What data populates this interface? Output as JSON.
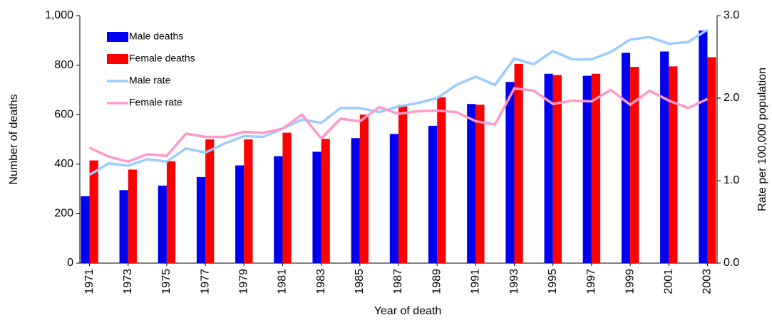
{
  "chart_data": {
    "type": "bar_line",
    "xlabel": "Year of death",
    "ylabel": "Number of deaths",
    "y2label": "Rate per 100,000 population",
    "categories": [
      "1971",
      null,
      "1973",
      null,
      "1975",
      null,
      "1977",
      null,
      "1979",
      null,
      "1981",
      null,
      "1983",
      null,
      "1985",
      null,
      "1987",
      null,
      "1989",
      null,
      "1991",
      null,
      "1993",
      null,
      "1995",
      null,
      "1997",
      null,
      "1999",
      null,
      "2001",
      null,
      "2003"
    ],
    "ylim": [
      0,
      1000
    ],
    "yticks": [
      0,
      200,
      400,
      600,
      800,
      {
        "value": 1000,
        "label": "1,000"
      }
    ],
    "y2lim": [
      0,
      3
    ],
    "y2ticks": [
      {
        "value": 0,
        "label": "0.0"
      },
      {
        "value": 1,
        "label": "1.0"
      },
      {
        "value": 2,
        "label": "2.0"
      },
      {
        "value": 3,
        "label": "3.0"
      }
    ],
    "legend": "upper left",
    "series": [
      {
        "name": "Male deaths",
        "kind": "bar",
        "color": "#0000ee",
        "values": [
          270,
          null,
          295,
          null,
          313,
          null,
          348,
          null,
          395,
          null,
          432,
          null,
          450,
          null,
          505,
          null,
          522,
          null,
          555,
          null,
          643,
          null,
          732,
          null,
          765,
          null,
          757,
          null,
          850,
          null,
          855,
          null,
          940
        ]
      },
      {
        "name": "Female deaths",
        "kind": "bar",
        "color": "#ff0000",
        "values": [
          415,
          null,
          378,
          null,
          412,
          null,
          500,
          null,
          500,
          null,
          527,
          null,
          502,
          null,
          600,
          null,
          640,
          null,
          670,
          null,
          640,
          null,
          805,
          null,
          760,
          null,
          765,
          null,
          793,
          null,
          795,
          null,
          832
        ]
      },
      {
        "name": "Male rate",
        "kind": "line",
        "axis": "y2",
        "color": "#99ccff",
        "values": [
          1.07,
          1.21,
          1.18,
          1.26,
          1.23,
          1.39,
          1.34,
          1.45,
          1.54,
          1.53,
          1.63,
          1.74,
          1.7,
          1.88,
          1.88,
          1.83,
          1.9,
          1.94,
          2.0,
          2.16,
          2.26,
          2.16,
          2.48,
          2.41,
          2.57,
          2.47,
          2.47,
          2.56,
          2.71,
          2.74,
          2.66,
          2.68,
          2.83
        ]
      },
      {
        "name": "Female rate",
        "kind": "line",
        "axis": "y2",
        "color": "#ff99cc",
        "values": [
          1.4,
          1.29,
          1.23,
          1.32,
          1.3,
          1.57,
          1.53,
          1.53,
          1.59,
          1.58,
          1.63,
          1.8,
          1.51,
          1.75,
          1.72,
          1.89,
          1.81,
          1.84,
          1.85,
          1.83,
          1.72,
          1.68,
          2.12,
          2.09,
          1.93,
          1.97,
          1.96,
          2.1,
          1.92,
          2.09,
          1.97,
          1.88,
          1.99
        ]
      }
    ]
  }
}
